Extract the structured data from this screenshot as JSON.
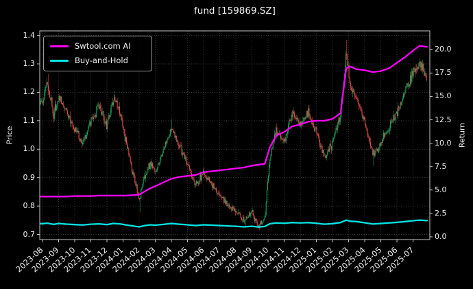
{
  "colors": {
    "background": "#000000",
    "text": "#f2f2f2",
    "grid": "#4a4a4a",
    "frame": "#c8c8c8",
    "tick": "#c8c8c8",
    "candle_up": "#1aa35a",
    "candle_down": "#e04b4b",
    "ai_line": "#ff00ff",
    "buy_hold_line": "#00e5e5"
  },
  "chart_data": {
    "type": "candlestick",
    "title": "fund [159869.SZ]",
    "ylabel_left": "Price",
    "ylabel_right": "Return",
    "grid": true,
    "legend_position": "upper-left",
    "legend": [
      {
        "label": "Swtool.com AI",
        "color": "#ff00ff"
      },
      {
        "label": "Buy-and-Hold",
        "color": "#00e5e5"
      }
    ],
    "x_tick_labels": [
      "2023-08",
      "2023-09",
      "2023-10",
      "2023-11",
      "2023-12",
      "2024-01",
      "2024-02",
      "2024-03",
      "2024-04",
      "2024-05",
      "2024-06",
      "2024-07",
      "2024-08",
      "2024-09",
      "2024-10",
      "2024-11",
      "2024-12",
      "2025-01",
      "2025-02",
      "2025-03",
      "2025-04",
      "2025-05",
      "2025-06",
      "2025-07"
    ],
    "price_tick_values": [
      0.7,
      0.8,
      0.9,
      1.0,
      1.1,
      1.2,
      1.3,
      1.4
    ],
    "return_tick_values": [
      0.0,
      2.5,
      5.0,
      7.5,
      10.0,
      12.5,
      15.0,
      17.5,
      20.0
    ],
    "price_ylim": [
      0.682,
      1.416
    ],
    "return_ylim": [
      -0.3,
      22.0
    ],
    "xlim_months": [
      -0.17,
      24.04
    ],
    "x_unit": "months since 2023-08",
    "candles_per_month": 21,
    "samples": {
      "t_months": [
        0.0,
        0.3,
        0.7,
        1.0,
        1.5,
        2.0,
        2.5,
        3.0,
        3.5,
        4.0,
        4.4,
        4.8,
        5.2,
        5.6,
        6.0,
        6.3,
        6.7,
        7.0,
        7.5,
        8.0,
        8.5,
        9.0,
        9.5,
        10.0,
        10.5,
        11.0,
        11.5,
        12.0,
        12.5,
        13.0,
        13.4,
        13.8,
        14.1,
        14.5,
        15.0,
        15.5,
        16.0,
        16.5,
        17.0,
        17.5,
        18.0,
        18.5,
        18.85,
        19.1,
        19.5,
        20.0,
        20.5,
        21.0,
        21.5,
        22.0,
        22.5,
        23.0,
        23.4,
        23.8
      ],
      "price_close": [
        1.16,
        1.24,
        1.12,
        1.19,
        1.13,
        1.07,
        1.02,
        1.1,
        1.15,
        1.08,
        1.18,
        1.13,
        1.02,
        0.92,
        0.82,
        0.9,
        0.95,
        0.92,
        1.0,
        1.07,
        1.01,
        0.95,
        0.87,
        0.92,
        0.88,
        0.84,
        0.8,
        0.78,
        0.75,
        0.78,
        0.725,
        0.76,
        0.97,
        1.06,
        1.03,
        1.12,
        1.08,
        1.13,
        1.06,
        0.97,
        1.02,
        1.12,
        1.34,
        1.22,
        1.18,
        1.1,
        0.98,
        1.02,
        1.08,
        1.13,
        1.2,
        1.27,
        1.3,
        1.26
      ],
      "ai_return": [
        4.3,
        4.3,
        4.3,
        4.3,
        4.3,
        4.35,
        4.35,
        4.35,
        4.4,
        4.4,
        4.4,
        4.4,
        4.4,
        4.45,
        4.5,
        4.8,
        5.2,
        5.4,
        5.8,
        6.2,
        6.4,
        6.5,
        6.6,
        6.9,
        7.0,
        7.1,
        7.2,
        7.3,
        7.4,
        7.6,
        7.7,
        7.8,
        9.5,
        10.8,
        11.2,
        11.8,
        12.0,
        12.3,
        12.4,
        12.4,
        12.6,
        13.2,
        18.0,
        18.2,
        17.9,
        17.8,
        17.6,
        17.7,
        18.0,
        18.6,
        19.2,
        19.9,
        20.4,
        20.3
      ],
      "buy_hold_return": [
        1.4,
        1.45,
        1.32,
        1.42,
        1.35,
        1.3,
        1.26,
        1.34,
        1.38,
        1.3,
        1.42,
        1.38,
        1.26,
        1.16,
        1.06,
        1.18,
        1.28,
        1.24,
        1.32,
        1.42,
        1.34,
        1.28,
        1.2,
        1.28,
        1.24,
        1.2,
        1.16,
        1.12,
        1.06,
        1.12,
        1.04,
        1.1,
        1.38,
        1.48,
        1.44,
        1.52,
        1.48,
        1.52,
        1.44,
        1.34,
        1.4,
        1.52,
        1.78,
        1.66,
        1.62,
        1.5,
        1.36,
        1.42,
        1.48,
        1.54,
        1.62,
        1.72,
        1.78,
        1.74
      ]
    },
    "extremes": [
      {
        "t": 0.35,
        "high": 1.265
      },
      {
        "t": 4.45,
        "high": 1.205
      },
      {
        "t": 6.05,
        "low": 0.778
      },
      {
        "t": 8.0,
        "high": 1.105
      },
      {
        "t": 12.6,
        "low": 0.728
      },
      {
        "t": 13.45,
        "low": 0.714
      },
      {
        "t": 18.87,
        "high": 1.385
      },
      {
        "t": 20.55,
        "low": 0.942
      },
      {
        "t": 23.45,
        "high": 1.303
      }
    ]
  }
}
